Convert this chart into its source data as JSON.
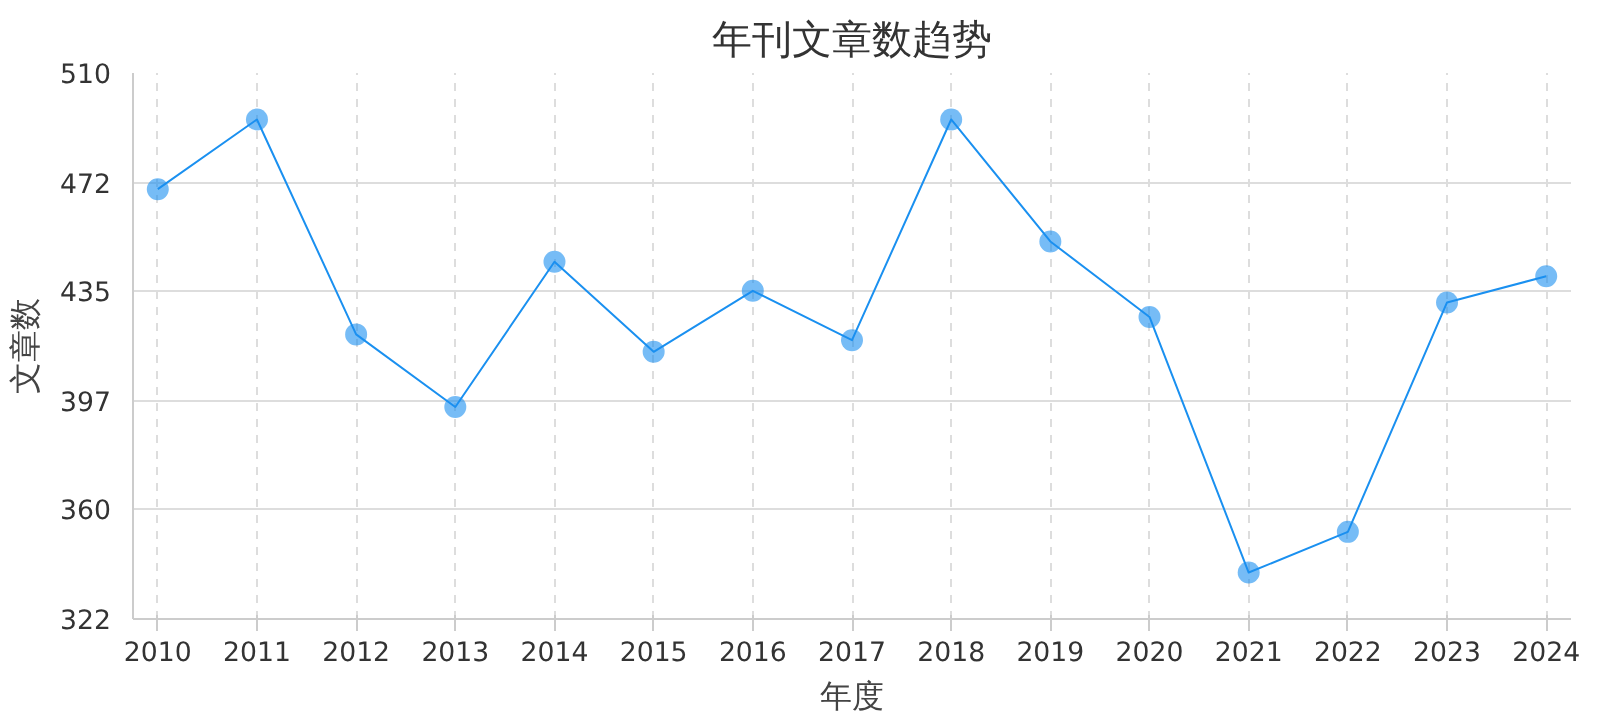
{
  "chart_data": {
    "type": "line",
    "title": "年刊文章数趋势",
    "xlabel": "年度",
    "ylabel": "文章数",
    "categories": [
      "2010",
      "2011",
      "2012",
      "2013",
      "2014",
      "2015",
      "2016",
      "2017",
      "2018",
      "2019",
      "2020",
      "2021",
      "2022",
      "2023",
      "2024"
    ],
    "series": [
      {
        "color": "#1a90f0",
        "values": [
          470,
          494,
          420,
          395,
          445,
          414,
          435,
          418,
          494,
          452,
          426,
          338,
          352,
          431,
          440
        ]
      }
    ],
    "ylim": [
      322,
      510
    ],
    "yticks": [
      322,
      360,
      397,
      435,
      472,
      510
    ],
    "grid": true,
    "marker": "circle",
    "line_style": "solid"
  }
}
